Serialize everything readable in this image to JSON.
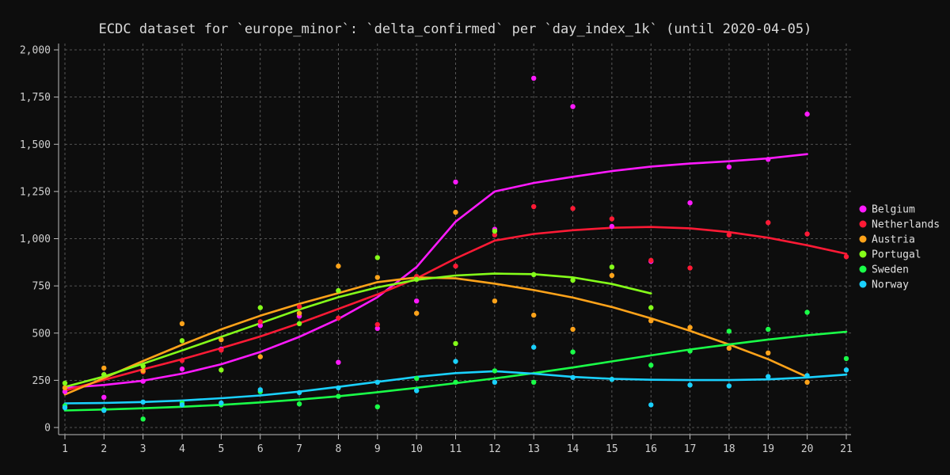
{
  "chart_data": {
    "type": "scatter",
    "title": "ECDC dataset for `europe_minor`: `delta_confirmed` per `day_index_1k` (until 2020-04-05)",
    "xlabel": "",
    "ylabel": "",
    "xlim": [
      1,
      21
    ],
    "ylim": [
      0,
      2000
    ],
    "x_ticks": [
      1,
      2,
      3,
      4,
      5,
      6,
      7,
      8,
      9,
      10,
      11,
      12,
      13,
      14,
      15,
      16,
      17,
      18,
      19,
      20,
      21
    ],
    "y_ticks": [
      0,
      250,
      500,
      750,
      1000,
      1250,
      1500,
      1750,
      2000
    ],
    "y_tick_labels": [
      "0",
      "250",
      "500",
      "750",
      "1,000",
      "1,250",
      "1,500",
      "1,750",
      "2,000"
    ],
    "grid": true,
    "legend": "right",
    "series": [
      {
        "name": "Belgium",
        "color": "#ff1aff",
        "points": [
          [
            1,
            190
          ],
          [
            2,
            160
          ],
          [
            3,
            245
          ],
          [
            4,
            310
          ],
          [
            5,
            415
          ],
          [
            6,
            540
          ],
          [
            7,
            590
          ],
          [
            8,
            345
          ],
          [
            9,
            525
          ],
          [
            10,
            670
          ],
          [
            11,
            1300
          ],
          [
            12,
            1050
          ],
          [
            13,
            1850
          ],
          [
            14,
            1700
          ],
          [
            15,
            1065
          ],
          [
            16,
            880
          ],
          [
            17,
            1190
          ],
          [
            18,
            1380
          ],
          [
            19,
            1420
          ],
          [
            20,
            1660
          ]
        ],
        "trend": [
          [
            1,
            210
          ],
          [
            2,
            225
          ],
          [
            3,
            248
          ],
          [
            4,
            285
          ],
          [
            5,
            335
          ],
          [
            6,
            400
          ],
          [
            7,
            480
          ],
          [
            8,
            575
          ],
          [
            9,
            690
          ],
          [
            10,
            850
          ],
          [
            11,
            1090
          ],
          [
            12,
            1250
          ],
          [
            13,
            1295
          ],
          [
            14,
            1328
          ],
          [
            15,
            1358
          ],
          [
            16,
            1382
          ],
          [
            17,
            1398
          ],
          [
            18,
            1410
          ],
          [
            19,
            1425
          ],
          [
            20,
            1448
          ]
        ]
      },
      {
        "name": "Netherlands",
        "color": "#ff1a35",
        "points": [
          [
            1,
            210
          ],
          [
            2,
            280
          ],
          [
            3,
            295
          ],
          [
            4,
            355
          ],
          [
            5,
            410
          ],
          [
            6,
            560
          ],
          [
            7,
            640
          ],
          [
            8,
            580
          ],
          [
            9,
            545
          ],
          [
            10,
            800
          ],
          [
            11,
            855
          ],
          [
            12,
            1020
          ],
          [
            13,
            1170
          ],
          [
            14,
            1160
          ],
          [
            15,
            1105
          ],
          [
            16,
            885
          ],
          [
            17,
            845
          ],
          [
            18,
            1020
          ],
          [
            19,
            1085
          ],
          [
            20,
            1025
          ],
          [
            21,
            905
          ]
        ],
        "trend": [
          [
            1,
            195
          ],
          [
            2,
            252
          ],
          [
            3,
            308
          ],
          [
            4,
            362
          ],
          [
            5,
            420
          ],
          [
            6,
            482
          ],
          [
            7,
            552
          ],
          [
            8,
            628
          ],
          [
            9,
            705
          ],
          [
            10,
            790
          ],
          [
            11,
            895
          ],
          [
            12,
            990
          ],
          [
            13,
            1025
          ],
          [
            14,
            1045
          ],
          [
            15,
            1058
          ],
          [
            16,
            1062
          ],
          [
            17,
            1055
          ],
          [
            18,
            1035
          ],
          [
            19,
            1005
          ],
          [
            20,
            965
          ],
          [
            21,
            920
          ]
        ]
      },
      {
        "name": "Austria",
        "color": "#ffa31a",
        "points": [
          [
            1,
            210
          ],
          [
            2,
            315
          ],
          [
            3,
            300
          ],
          [
            4,
            550
          ],
          [
            5,
            465
          ],
          [
            6,
            375
          ],
          [
            7,
            605
          ],
          [
            8,
            855
          ],
          [
            9,
            795
          ],
          [
            10,
            605
          ],
          [
            11,
            1140
          ],
          [
            12,
            670
          ],
          [
            13,
            595
          ],
          [
            14,
            520
          ],
          [
            15,
            805
          ],
          [
            16,
            565
          ],
          [
            17,
            530
          ],
          [
            18,
            420
          ],
          [
            19,
            395
          ],
          [
            20,
            240
          ]
        ],
        "trend": [
          [
            1,
            175
          ],
          [
            2,
            262
          ],
          [
            3,
            352
          ],
          [
            4,
            438
          ],
          [
            5,
            520
          ],
          [
            6,
            592
          ],
          [
            7,
            655
          ],
          [
            8,
            712
          ],
          [
            9,
            770
          ],
          [
            10,
            795
          ],
          [
            11,
            790
          ],
          [
            12,
            762
          ],
          [
            13,
            728
          ],
          [
            14,
            688
          ],
          [
            15,
            638
          ],
          [
            16,
            578
          ],
          [
            17,
            512
          ],
          [
            18,
            440
          ],
          [
            19,
            362
          ],
          [
            20,
            268
          ]
        ]
      },
      {
        "name": "Portugal",
        "color": "#85ff1a",
        "points": [
          [
            1,
            235
          ],
          [
            2,
            280
          ],
          [
            3,
            325
          ],
          [
            4,
            460
          ],
          [
            5,
            305
          ],
          [
            6,
            635
          ],
          [
            7,
            550
          ],
          [
            8,
            725
          ],
          [
            9,
            900
          ],
          [
            10,
            785
          ],
          [
            11,
            445
          ],
          [
            12,
            1040
          ],
          [
            13,
            810
          ],
          [
            14,
            780
          ],
          [
            15,
            850
          ],
          [
            16,
            635
          ]
        ],
        "trend": [
          [
            1,
            215
          ],
          [
            2,
            270
          ],
          [
            3,
            338
          ],
          [
            4,
            408
          ],
          [
            5,
            480
          ],
          [
            6,
            552
          ],
          [
            7,
            625
          ],
          [
            8,
            690
          ],
          [
            9,
            742
          ],
          [
            10,
            782
          ],
          [
            11,
            805
          ],
          [
            12,
            815
          ],
          [
            13,
            812
          ],
          [
            14,
            795
          ],
          [
            15,
            760
          ],
          [
            16,
            710
          ]
        ]
      },
      {
        "name": "Sweden",
        "color": "#1aff48",
        "points": [
          [
            1,
            115
          ],
          [
            2,
            95
          ],
          [
            3,
            45
          ],
          [
            4,
            130
          ],
          [
            5,
            120
          ],
          [
            6,
            190
          ],
          [
            7,
            125
          ],
          [
            8,
            165
          ],
          [
            9,
            110
          ],
          [
            10,
            260
          ],
          [
            11,
            240
          ],
          [
            12,
            300
          ],
          [
            13,
            240
          ],
          [
            14,
            400
          ],
          [
            15,
            255
          ],
          [
            16,
            330
          ],
          [
            17,
            405
          ],
          [
            18,
            510
          ],
          [
            19,
            520
          ],
          [
            20,
            610
          ],
          [
            21,
            365
          ]
        ],
        "trend": [
          [
            1,
            90
          ],
          [
            2,
            95
          ],
          [
            3,
            102
          ],
          [
            4,
            110
          ],
          [
            5,
            120
          ],
          [
            6,
            133
          ],
          [
            7,
            148
          ],
          [
            8,
            165
          ],
          [
            9,
            187
          ],
          [
            10,
            210
          ],
          [
            11,
            235
          ],
          [
            12,
            260
          ],
          [
            13,
            288
          ],
          [
            14,
            318
          ],
          [
            15,
            350
          ],
          [
            16,
            382
          ],
          [
            17,
            413
          ],
          [
            18,
            440
          ],
          [
            19,
            466
          ],
          [
            20,
            488
          ],
          [
            21,
            507
          ]
        ]
      },
      {
        "name": "Norway",
        "color": "#1ad1ff",
        "points": [
          [
            1,
            105
          ],
          [
            2,
            90
          ],
          [
            3,
            135
          ],
          [
            4,
            120
          ],
          [
            5,
            130
          ],
          [
            6,
            200
          ],
          [
            7,
            185
          ],
          [
            8,
            210
          ],
          [
            9,
            240
          ],
          [
            10,
            195
          ],
          [
            11,
            350
          ],
          [
            12,
            240
          ],
          [
            13,
            425
          ],
          [
            14,
            265
          ],
          [
            15,
            255
          ],
          [
            16,
            120
          ],
          [
            17,
            225
          ],
          [
            18,
            220
          ],
          [
            19,
            270
          ],
          [
            20,
            275
          ],
          [
            21,
            305
          ]
        ],
        "trend": [
          [
            1,
            128
          ],
          [
            2,
            130
          ],
          [
            3,
            135
          ],
          [
            4,
            143
          ],
          [
            5,
            155
          ],
          [
            6,
            170
          ],
          [
            7,
            190
          ],
          [
            8,
            215
          ],
          [
            9,
            242
          ],
          [
            10,
            268
          ],
          [
            11,
            288
          ],
          [
            12,
            298
          ],
          [
            13,
            285
          ],
          [
            14,
            268
          ],
          [
            15,
            258
          ],
          [
            16,
            253
          ],
          [
            17,
            251
          ],
          [
            18,
            251
          ],
          [
            19,
            255
          ],
          [
            20,
            265
          ],
          [
            21,
            280
          ]
        ]
      }
    ]
  }
}
